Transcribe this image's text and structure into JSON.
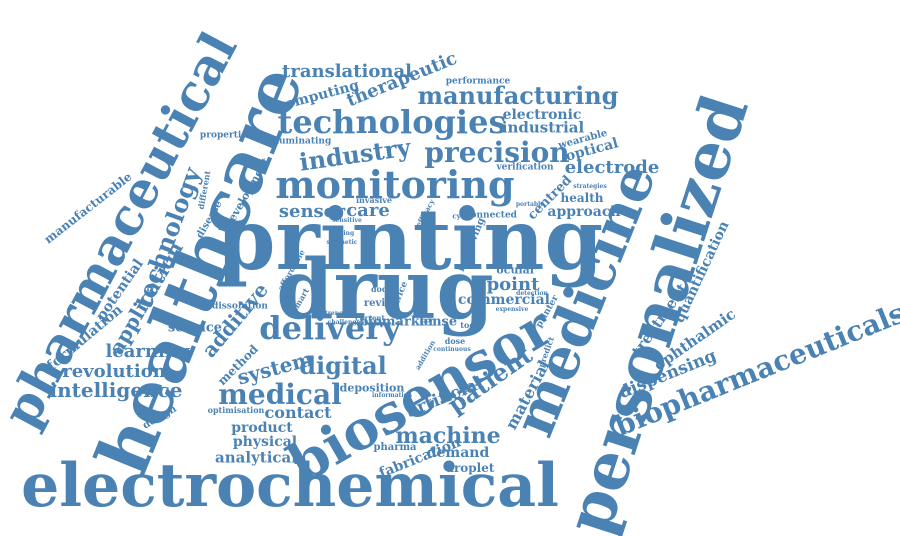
{
  "colors": {
    "word": "#4a82b4",
    "background": "#ffffff"
  },
  "words": [
    "printing",
    "drug",
    "healthcare",
    "electrochemical",
    "personalized",
    "medicine",
    "biosensor",
    "pharmaceutical",
    "monitoring",
    "technologies",
    "delivery",
    "biopharmaceuticals",
    "precision",
    "manufacturing",
    "industry",
    "technology",
    "medical",
    "machine",
    "digital",
    "patient",
    "translational",
    "therapeutic",
    "application",
    "intelligence",
    "revolution",
    "learning",
    "additive",
    "system",
    "electrode",
    "sensor",
    "care",
    "point",
    "analytical",
    "contact",
    "product",
    "physical",
    "artificial",
    "material",
    "dispensing",
    "treatment",
    "ophthalmic",
    "quantification",
    "formulation",
    "manufacturable",
    "potential",
    "science",
    "method",
    "industrial",
    "electronic",
    "computing",
    "approach",
    "health",
    "centred",
    "optical",
    "wearable",
    "commercial",
    "ocular",
    "biomarker",
    "lense",
    "droplet",
    "fabrication",
    "demand",
    "pharma",
    "deposition",
    "design",
    "optimisation",
    "development",
    "disease",
    "different",
    "properties",
    "illuminating",
    "performance",
    "verification",
    "dissolution",
    "connected",
    "review",
    "dodp",
    "tool",
    "printer",
    "predict",
    "improving",
    "cyber",
    "affordable",
    "smart",
    "invasive",
    "dose",
    "current",
    "addition",
    "continuous",
    "detection",
    "expensive",
    "portable",
    "strategies",
    "information",
    "challenge",
    "advance",
    "strength",
    "sensitive",
    "synthetic",
    "dosing",
    "efficacy",
    "device",
    "proc"
  ]
}
